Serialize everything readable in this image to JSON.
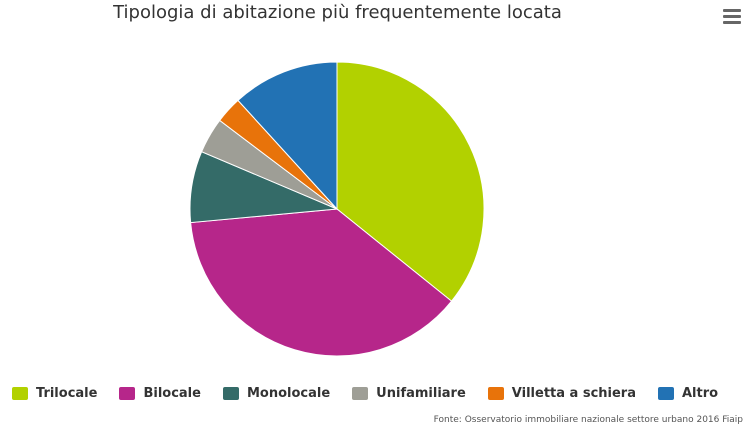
{
  "chart_data": {
    "type": "pie",
    "title": "Tipologia di abitazione più frequentemente locata",
    "categories": [
      "Trilocale",
      "Bilocale",
      "Monolocale",
      "Unifamiliare",
      "Villetta a schiera",
      "Altro"
    ],
    "values": [
      36.5,
      38.5,
      8.0,
      4.0,
      3.0,
      12.0
    ],
    "colors": [
      "#b2d100",
      "#b6268a",
      "#346b68",
      "#9e9e96",
      "#e8730a",
      "#2272b4"
    ],
    "legend_position": "bottom"
  },
  "credits": "Fonte: Osservatorio immobiliare nazionale settore urbano 2016 Fiaip",
  "menu_icon": "hamburger-menu-icon"
}
